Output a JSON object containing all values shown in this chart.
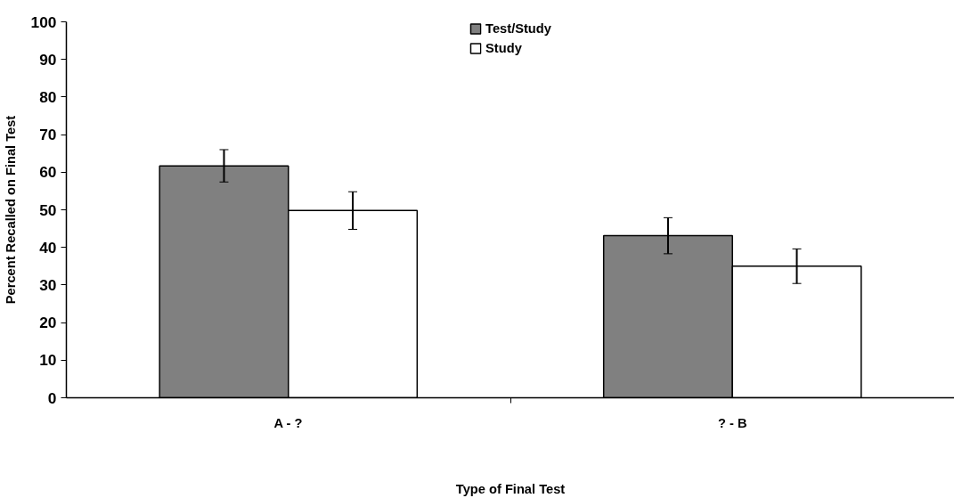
{
  "chart_data": {
    "type": "bar",
    "xlabel": "Type of Final Test",
    "ylabel": "Percent Recalled on Final Test",
    "categories": [
      "A - ?",
      "? - B"
    ],
    "series": [
      {
        "name": "Test/Study",
        "color": "#808080",
        "values": [
          61.7,
          43.1
        ],
        "errors": [
          4.3,
          4.8
        ]
      },
      {
        "name": "Study",
        "color": "#ffffff",
        "values": [
          49.8,
          35.0
        ],
        "errors": [
          5.0,
          4.6
        ]
      }
    ],
    "ylim": [
      0,
      100
    ],
    "yticks": [
      0,
      10,
      20,
      30,
      40,
      50,
      60,
      70,
      80,
      90,
      100
    ],
    "grid": false,
    "legend": "top"
  }
}
